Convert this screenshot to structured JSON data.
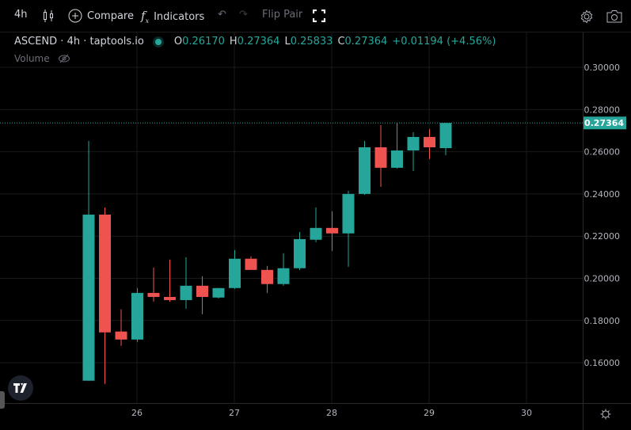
{
  "toolbar": {
    "interval": "4h",
    "compare_label": "Compare",
    "indicators_label": "Indicators",
    "flip_pair_label": "Flip Pair"
  },
  "legend": {
    "title": "ASCEND · 4h · taptools.io",
    "o_key": "O",
    "o": "0.26170",
    "h_key": "H",
    "h": "0.27364",
    "l_key": "L",
    "l": "0.25833",
    "c_key": "C",
    "c": "0.27364",
    "change": "+0.01194 (+4.56%)",
    "volume_label": "Volume"
  },
  "logo": "TV",
  "colors": {
    "up": "#26a69a",
    "down": "#ef5350",
    "grid": "#1a1a1a",
    "last_price": "#26a69a"
  },
  "chart_data": {
    "type": "candlestick",
    "title": "ASCEND · 4h · taptools.io",
    "interval_hours": 4,
    "first_candle_day": 25.5,
    "x_ticks": [
      "26",
      "27",
      "28",
      "29",
      "30"
    ],
    "x_tick_days": [
      26,
      27,
      28,
      29,
      30
    ],
    "y_ticks": [
      "0.30000",
      "0.28000",
      "0.26000",
      "0.24000",
      "0.22000",
      "0.20000",
      "0.18000",
      "0.16000"
    ],
    "y_tick_values": [
      0.3,
      0.28,
      0.26,
      0.24,
      0.22,
      0.2,
      0.18,
      0.16
    ],
    "ylim": [
      0.145,
      0.3155
    ],
    "xlim_days": [
      25.0,
      30.6
    ],
    "last_price": 0.27364,
    "last_price_label": "0.27364",
    "grid": true,
    "candles": [
      {
        "o": 0.1515,
        "h": 0.2651,
        "l": 0.1515,
        "c": 0.2302
      },
      {
        "o": 0.2302,
        "h": 0.2336,
        "l": 0.15,
        "c": 0.1744
      },
      {
        "o": 0.1748,
        "h": 0.1853,
        "l": 0.168,
        "c": 0.171
      },
      {
        "o": 0.171,
        "h": 0.1954,
        "l": 0.1699,
        "c": 0.1931
      },
      {
        "o": 0.1931,
        "h": 0.2051,
        "l": 0.189,
        "c": 0.1912
      },
      {
        "o": 0.1912,
        "h": 0.2089,
        "l": 0.1889,
        "c": 0.1897
      },
      {
        "o": 0.1897,
        "h": 0.21,
        "l": 0.1856,
        "c": 0.1965
      },
      {
        "o": 0.1965,
        "h": 0.201,
        "l": 0.183,
        "c": 0.1912
      },
      {
        "o": 0.1909,
        "h": 0.1954,
        "l": 0.1905,
        "c": 0.1954
      },
      {
        "o": 0.1954,
        "h": 0.2134,
        "l": 0.195,
        "c": 0.2093
      },
      {
        "o": 0.2093,
        "h": 0.2104,
        "l": 0.204,
        "c": 0.204
      },
      {
        "o": 0.204,
        "h": 0.2059,
        "l": 0.1931,
        "c": 0.1973
      },
      {
        "o": 0.1973,
        "h": 0.2119,
        "l": 0.1965,
        "c": 0.2048
      },
      {
        "o": 0.2048,
        "h": 0.222,
        "l": 0.204,
        "c": 0.2186
      },
      {
        "o": 0.2183,
        "h": 0.2336,
        "l": 0.2171,
        "c": 0.2239
      },
      {
        "o": 0.2239,
        "h": 0.2318,
        "l": 0.213,
        "c": 0.2213
      },
      {
        "o": 0.2213,
        "h": 0.2415,
        "l": 0.2055,
        "c": 0.24
      },
      {
        "o": 0.24,
        "h": 0.2651,
        "l": 0.2396,
        "c": 0.2621
      },
      {
        "o": 0.2621,
        "h": 0.2726,
        "l": 0.2434,
        "c": 0.2524
      },
      {
        "o": 0.2524,
        "h": 0.2737,
        "l": 0.252,
        "c": 0.2606
      },
      {
        "o": 0.2606,
        "h": 0.2693,
        "l": 0.2509,
        "c": 0.267
      },
      {
        "o": 0.267,
        "h": 0.2707,
        "l": 0.2565,
        "c": 0.2621
      },
      {
        "o": 0.2617,
        "h": 0.27364,
        "l": 0.25833,
        "c": 0.27364
      }
    ]
  }
}
